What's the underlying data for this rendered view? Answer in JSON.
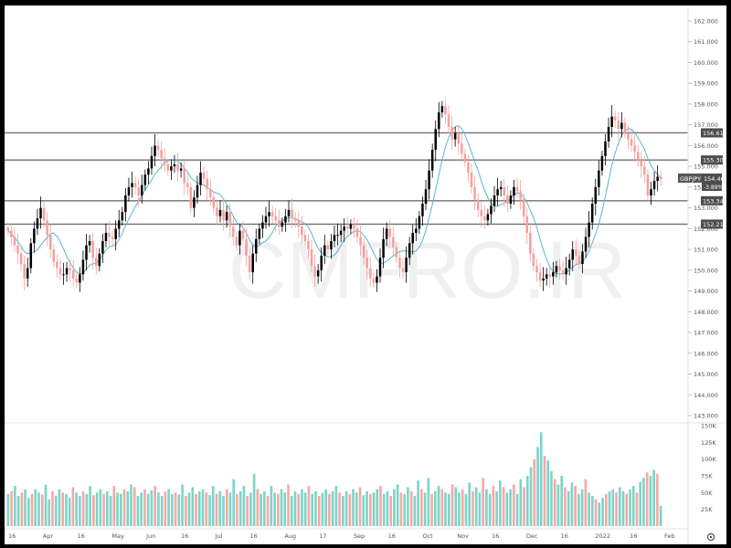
{
  "chart_data": [
    {
      "type": "candlestick",
      "symbol": "GBPJPY",
      "last_price": "154.466",
      "change": "-3.89%",
      "ylim": [
        143.0,
        162.0
      ],
      "y_ticks": [
        "162.000",
        "161.000",
        "160.000",
        "159.000",
        "158.000",
        "157.000",
        "156.000",
        "155.000",
        "154.000",
        "153.000",
        "152.000",
        "151.000",
        "150.000",
        "149.000",
        "148.000",
        "147.000",
        "146.000",
        "145.000",
        "144.000",
        "143.000"
      ],
      "x_labels": [
        "16",
        "Apr",
        "16",
        "May",
        "Jun",
        "16",
        "Jul",
        "16",
        "Aug",
        "17",
        "Sep",
        "16",
        "Oct",
        "Nov",
        "16",
        "Dec",
        "16",
        "2022",
        "16",
        "Feb"
      ],
      "grid": false,
      "levels": [
        {
          "label": "156.613",
          "value": 156.613
        },
        {
          "label": "155.308",
          "value": 155.308
        },
        {
          "label": "153.345",
          "value": 153.345
        },
        {
          "label": "152.219",
          "value": 152.219
        }
      ],
      "colors": {
        "up": "#000000",
        "down": "#f4a09c",
        "ma": "#5ab4d6",
        "level": "#707070",
        "vol_up": "#7fd3c8",
        "vol_down": "#f7a8a4"
      },
      "close_path": [
        151.9,
        151.6,
        151.2,
        150.8,
        150.3,
        149.6,
        150.1,
        151.3,
        152.0,
        152.5,
        153.0,
        152.4,
        151.7,
        151.0,
        150.4,
        150.1,
        149.8,
        149.8,
        150.1,
        150.0,
        149.6,
        149.4,
        149.8,
        150.5,
        151.2,
        151.4,
        150.6,
        150.2,
        150.8,
        151.4,
        151.8,
        151.6,
        151.5,
        152.0,
        152.4,
        152.8,
        153.6,
        154.0,
        154.2,
        154.0,
        153.6,
        154.1,
        154.6,
        154.9,
        155.5,
        156.0,
        155.8,
        155.4,
        155.1,
        154.8,
        155.0,
        155.1,
        154.8,
        154.9,
        154.2,
        154.0,
        153.0,
        153.5,
        154.1,
        154.7,
        154.4,
        153.9,
        153.5,
        153.0,
        152.6,
        152.9,
        152.4,
        152.8,
        152.1,
        151.6,
        151.2,
        151.9,
        151.5,
        150.7,
        149.9,
        150.8,
        151.5,
        152.0,
        152.3,
        152.6,
        152.8,
        152.6,
        152.4,
        152.1,
        152.3,
        152.6,
        152.9,
        152.5,
        152.4,
        152.1,
        151.7,
        151.4,
        151.0,
        150.2,
        149.7,
        150.0,
        150.7,
        151.2,
        151.0,
        151.4,
        151.7,
        151.7,
        151.9,
        152.1,
        152.0,
        152.2,
        152.0,
        151.6,
        151.2,
        150.6,
        150.1,
        149.6,
        149.4,
        149.7,
        150.6,
        151.5,
        152.0,
        151.6,
        151.1,
        150.6,
        150.1,
        149.9,
        150.6,
        151.3,
        151.8,
        152.0,
        152.6,
        153.2,
        153.9,
        154.8,
        155.8,
        156.8,
        157.6,
        157.9,
        157.5,
        156.9,
        156.3,
        156.6,
        156.1,
        155.6,
        155.2,
        154.7,
        154.0,
        153.4,
        152.9,
        152.6,
        152.4,
        152.7,
        153.1,
        153.6,
        153.9,
        154.0,
        153.6,
        153.2,
        153.6,
        154.0,
        153.8,
        153.4,
        152.6,
        151.8,
        150.8,
        150.2,
        149.9,
        149.5,
        149.6,
        149.8,
        149.7,
        149.9,
        150.2,
        150.0,
        149.8,
        150.1,
        150.5,
        151.0,
        150.7,
        150.3,
        150.9,
        151.6,
        152.3,
        153.2,
        154.0,
        154.8,
        155.5,
        156.2,
        156.9,
        157.4,
        157.2,
        156.8,
        157.1,
        156.6,
        156.3,
        156.0,
        155.7,
        155.3,
        155.0,
        154.6,
        153.6,
        153.9,
        154.3,
        154.5,
        154.4
      ]
    },
    {
      "type": "bar",
      "title": "Volume",
      "ylim": [
        0,
        150000
      ],
      "y_ticks": [
        "150K",
        "125K",
        "100K",
        "75K",
        "50K",
        "25K"
      ],
      "values": [
        48,
        52,
        60,
        45,
        50,
        55,
        42,
        48,
        55,
        50,
        47,
        62,
        40,
        52,
        45,
        55,
        50,
        48,
        42,
        58,
        50,
        45,
        52,
        48,
        60,
        46,
        50,
        55,
        48,
        52,
        45,
        60,
        50,
        48,
        55,
        52,
        62,
        58,
        45,
        50,
        55,
        48,
        53,
        60,
        50,
        45,
        52,
        55,
        48,
        50,
        47,
        62,
        45,
        50,
        58,
        48,
        52,
        55,
        50,
        46,
        60,
        48,
        52,
        45,
        55,
        50,
        70,
        48,
        52,
        60,
        45,
        50,
        78,
        55,
        48,
        52,
        45,
        60,
        50,
        48,
        55,
        50,
        62,
        45,
        52,
        48,
        55,
        50,
        60,
        48,
        52,
        45,
        50,
        55,
        48,
        52,
        60,
        50,
        45,
        52,
        48,
        55,
        50,
        58,
        46,
        52,
        48,
        50,
        55,
        60,
        48,
        52,
        45,
        55,
        62,
        50,
        48,
        58,
        52,
        45,
        68,
        55,
        50,
        72,
        48,
        52,
        60,
        55,
        50,
        48,
        62,
        58,
        50,
        55,
        48,
        65,
        52,
        58,
        50,
        72,
        55,
        48,
        60,
        52,
        68,
        58,
        50,
        55,
        62,
        48,
        70,
        58,
        75,
        88,
        100,
        118,
        140,
        105,
        98,
        82,
        70,
        62,
        75,
        58,
        52,
        65,
        60,
        48,
        55,
        70,
        50,
        45,
        40,
        35,
        42,
        48,
        52,
        55,
        50,
        58,
        52,
        48,
        55,
        60,
        50,
        66,
        72,
        80,
        75,
        84,
        78,
        30
      ]
    }
  ],
  "watermark": "CMFRO.IR"
}
